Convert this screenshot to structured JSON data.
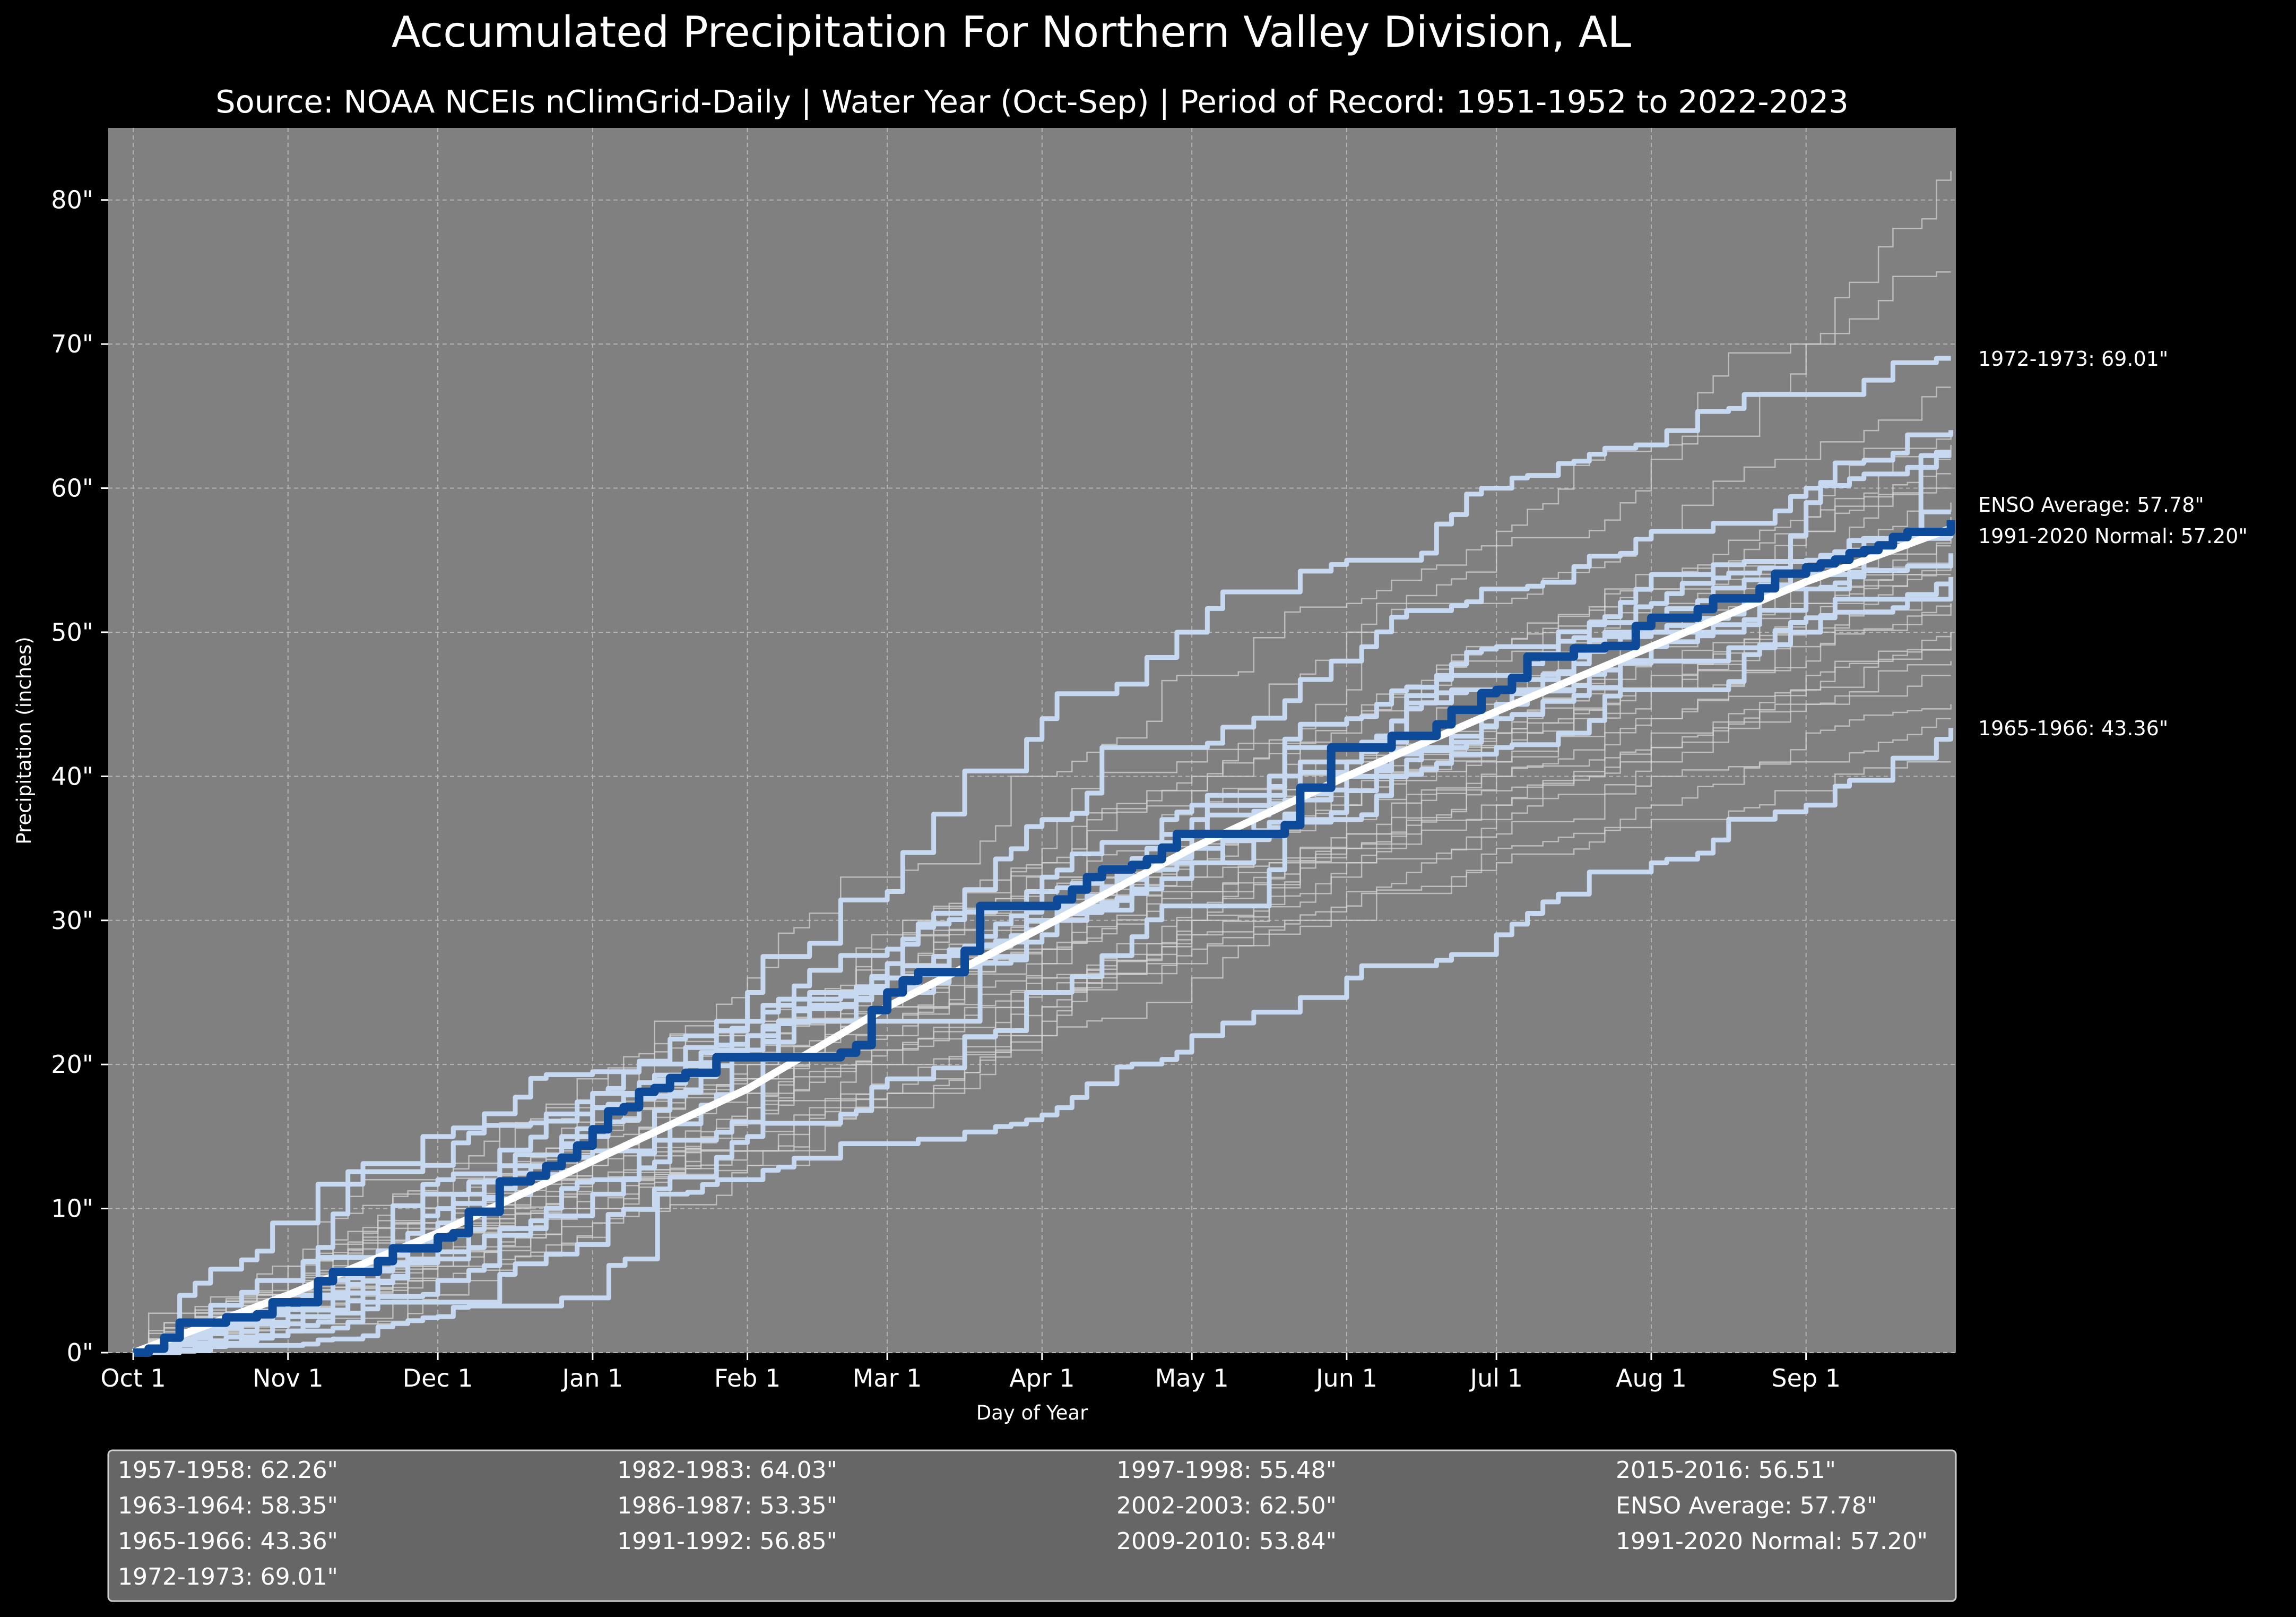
{
  "chart_data": {
    "type": "line",
    "title": "Accumulated Precipitation For Northern Valley Division, AL",
    "subtitle": "Source: NOAA NCEIs nClimGrid-Daily | Water Year (Oct-Sep) | Period of Record: 1951-1952 to 2022-2023",
    "xlabel": "Day of Year",
    "ylabel": "Precipitation (inches)",
    "ylim": [
      0,
      85
    ],
    "xlim": [
      -5,
      365
    ],
    "y_ticks": [
      {
        "value": 0,
        "label": "0\""
      },
      {
        "value": 10,
        "label": "10\""
      },
      {
        "value": 20,
        "label": "20\""
      },
      {
        "value": 30,
        "label": "30\""
      },
      {
        "value": 40,
        "label": "40\""
      },
      {
        "value": 50,
        "label": "50\""
      },
      {
        "value": 60,
        "label": "60\""
      },
      {
        "value": 70,
        "label": "70\""
      },
      {
        "value": 80,
        "label": "80\""
      }
    ],
    "x_ticks": [
      {
        "day": 0,
        "label": "Oct 1"
      },
      {
        "day": 31,
        "label": "Nov 1"
      },
      {
        "day": 61,
        "label": "Dec 1"
      },
      {
        "day": 92,
        "label": "Jan 1"
      },
      {
        "day": 123,
        "label": "Feb 1"
      },
      {
        "day": 151,
        "label": "Mar 1"
      },
      {
        "day": 182,
        "label": "Apr 1"
      },
      {
        "day": 212,
        "label": "May 1"
      },
      {
        "day": 243,
        "label": "Jun 1"
      },
      {
        "day": 273,
        "label": "Jul 1"
      },
      {
        "day": 304,
        "label": "Aug 1"
      },
      {
        "day": 335,
        "label": "Sep 1"
      }
    ],
    "grid": true,
    "colors": {
      "figure_bg": "#000000",
      "plot_bg": "#808080",
      "background_years": "#d2d2d2",
      "highlight_years": "#c6d9f0",
      "enso_average": "#0d4a99",
      "normal": "#ffffff",
      "legend_bg": "#666666"
    },
    "highlight_series": [
      {
        "name": "1957-1958",
        "final": 62.26,
        "points": [
          [
            0,
            0
          ],
          [
            31,
            3
          ],
          [
            61,
            6.5
          ],
          [
            92,
            12
          ],
          [
            123,
            21
          ],
          [
            151,
            25
          ],
          [
            182,
            31
          ],
          [
            212,
            37
          ],
          [
            243,
            42
          ],
          [
            273,
            47
          ],
          [
            304,
            52
          ],
          [
            335,
            55
          ],
          [
            355,
            56.5
          ],
          [
            358,
            62.26
          ],
          [
            364,
            62.26
          ]
        ]
      },
      {
        "name": "1963-1964",
        "final": 58.35,
        "points": [
          [
            0,
            0
          ],
          [
            31,
            1.5
          ],
          [
            61,
            5
          ],
          [
            92,
            11
          ],
          [
            123,
            16
          ],
          [
            151,
            23
          ],
          [
            182,
            30
          ],
          [
            212,
            36
          ],
          [
            243,
            40
          ],
          [
            273,
            45
          ],
          [
            304,
            50
          ],
          [
            335,
            54
          ],
          [
            364,
            58.35
          ]
        ]
      },
      {
        "name": "1965-1966",
        "final": 43.36,
        "points": [
          [
            0,
            0
          ],
          [
            31,
            0.5
          ],
          [
            61,
            2.5
          ],
          [
            92,
            3.8
          ],
          [
            105,
            11
          ],
          [
            123,
            12
          ],
          [
            151,
            14.5
          ],
          [
            182,
            16.5
          ],
          [
            212,
            22
          ],
          [
            243,
            26
          ],
          [
            273,
            29
          ],
          [
            304,
            34
          ],
          [
            335,
            38
          ],
          [
            364,
            43.36
          ]
        ]
      },
      {
        "name": "1972-1973",
        "final": 69.01,
        "points": [
          [
            0,
            0
          ],
          [
            31,
            9
          ],
          [
            61,
            15
          ],
          [
            92,
            19.5
          ],
          [
            123,
            25
          ],
          [
            151,
            32
          ],
          [
            182,
            44
          ],
          [
            212,
            50
          ],
          [
            243,
            55
          ],
          [
            273,
            60
          ],
          [
            304,
            63
          ],
          [
            335,
            66.5
          ],
          [
            364,
            69.01
          ]
        ]
      },
      {
        "name": "1982-1983",
        "final": 64.03,
        "points": [
          [
            0,
            0
          ],
          [
            31,
            4
          ],
          [
            61,
            10
          ],
          [
            92,
            17
          ],
          [
            123,
            23
          ],
          [
            151,
            28
          ],
          [
            182,
            37
          ],
          [
            212,
            42
          ],
          [
            243,
            48
          ],
          [
            273,
            53
          ],
          [
            304,
            57
          ],
          [
            335,
            60
          ],
          [
            364,
            64.03
          ]
        ]
      },
      {
        "name": "1986-1987",
        "final": 53.35,
        "points": [
          [
            0,
            0
          ],
          [
            31,
            1.5
          ],
          [
            61,
            3.5
          ],
          [
            92,
            7.5
          ],
          [
            123,
            15
          ],
          [
            151,
            19
          ],
          [
            182,
            25
          ],
          [
            212,
            31
          ],
          [
            243,
            37
          ],
          [
            273,
            42
          ],
          [
            304,
            46
          ],
          [
            335,
            50
          ],
          [
            364,
            53.35
          ]
        ]
      },
      {
        "name": "1991-1992",
        "final": 56.85,
        "points": [
          [
            0,
            0
          ],
          [
            31,
            2
          ],
          [
            61,
            7
          ],
          [
            92,
            14
          ],
          [
            123,
            21
          ],
          [
            151,
            26
          ],
          [
            182,
            30
          ],
          [
            212,
            34
          ],
          [
            243,
            39
          ],
          [
            273,
            45
          ],
          [
            304,
            49
          ],
          [
            335,
            53
          ],
          [
            364,
            56.85
          ]
        ]
      },
      {
        "name": "1997-1998",
        "final": 55.48,
        "points": [
          [
            0,
            0
          ],
          [
            31,
            5
          ],
          [
            61,
            13
          ],
          [
            92,
            18
          ],
          [
            123,
            23
          ],
          [
            151,
            27
          ],
          [
            182,
            32
          ],
          [
            212,
            36
          ],
          [
            243,
            41
          ],
          [
            273,
            46
          ],
          [
            304,
            50
          ],
          [
            335,
            53
          ],
          [
            364,
            55.48
          ]
        ]
      },
      {
        "name": "2002-2003",
        "final": 62.5,
        "points": [
          [
            0,
            0
          ],
          [
            31,
            3
          ],
          [
            61,
            9
          ],
          [
            92,
            15
          ],
          [
            123,
            22
          ],
          [
            151,
            26
          ],
          [
            182,
            33
          ],
          [
            212,
            38
          ],
          [
            243,
            44
          ],
          [
            273,
            49
          ],
          [
            304,
            54
          ],
          [
            335,
            59
          ],
          [
            364,
            62.5
          ]
        ]
      },
      {
        "name": "2009-2010",
        "final": 53.84,
        "points": [
          [
            0,
            0
          ],
          [
            31,
            4
          ],
          [
            61,
            12
          ],
          [
            92,
            18
          ],
          [
            123,
            22
          ],
          [
            151,
            26
          ],
          [
            182,
            30
          ],
          [
            212,
            35
          ],
          [
            243,
            40
          ],
          [
            273,
            44
          ],
          [
            304,
            48
          ],
          [
            335,
            51
          ],
          [
            364,
            53.84
          ]
        ]
      },
      {
        "name": "2015-2016",
        "final": 56.51,
        "points": [
          [
            0,
            0
          ],
          [
            31,
            2.5
          ],
          [
            61,
            11
          ],
          [
            92,
            17
          ],
          [
            123,
            21
          ],
          [
            151,
            25
          ],
          [
            182,
            29
          ],
          [
            212,
            34
          ],
          [
            243,
            41
          ],
          [
            273,
            46
          ],
          [
            304,
            51
          ],
          [
            335,
            54
          ],
          [
            364,
            56.51
          ]
        ]
      }
    ],
    "enso_average": {
      "name": "ENSO Average",
      "final": 57.78,
      "points": [
        [
          0,
          0
        ],
        [
          31,
          3.5
        ],
        [
          61,
          8
        ],
        [
          92,
          15.5
        ],
        [
          123,
          20.5
        ],
        [
          151,
          25
        ],
        [
          182,
          31
        ],
        [
          212,
          36
        ],
        [
          243,
          42
        ],
        [
          273,
          46
        ],
        [
          304,
          51
        ],
        [
          335,
          54.5
        ],
        [
          364,
          57.78
        ]
      ]
    },
    "normal": {
      "name": "1991-2020 Normal",
      "final": 57.2,
      "points": [
        [
          0,
          0
        ],
        [
          31,
          4
        ],
        [
          61,
          8.3
        ],
        [
          92,
          13.3
        ],
        [
          123,
          18.3
        ],
        [
          151,
          24
        ],
        [
          182,
          29.5
        ],
        [
          212,
          35
        ],
        [
          243,
          40
        ],
        [
          273,
          44.5
        ],
        [
          304,
          49
        ],
        [
          335,
          53.5
        ],
        [
          364,
          57.2
        ]
      ]
    },
    "background_series": [
      [
        0,
        4,
        9,
        14,
        18,
        23,
        28,
        33,
        38,
        43,
        48,
        53,
        58
      ],
      [
        0,
        3,
        7,
        12,
        16,
        21,
        26,
        30,
        35,
        39,
        43,
        46,
        50
      ],
      [
        0,
        2,
        6,
        10,
        15,
        20,
        25,
        30,
        35,
        41,
        46,
        52,
        57
      ],
      [
        0,
        5,
        10,
        16,
        22,
        28,
        34,
        40,
        46,
        52,
        57,
        62,
        67
      ],
      [
        0,
        3,
        8,
        13,
        18,
        22,
        27,
        32,
        37,
        42,
        46,
        50,
        54
      ],
      [
        0,
        4,
        9,
        13,
        19,
        25,
        30,
        36,
        41,
        45,
        50,
        55,
        60
      ],
      [
        0,
        2,
        5,
        9,
        13,
        17,
        22,
        27,
        31,
        35,
        38,
        41,
        44
      ],
      [
        0,
        5,
        11,
        17,
        23,
        29,
        35,
        41,
        50,
        56,
        62,
        70,
        75
      ],
      [
        0,
        3,
        7,
        11,
        15,
        20,
        24,
        29,
        33,
        37,
        41,
        45,
        48
      ],
      [
        0,
        6,
        12,
        19,
        26,
        33,
        40,
        47,
        52,
        57,
        63,
        70,
        82
      ],
      [
        0,
        4,
        8,
        12,
        16,
        21,
        25,
        30,
        34,
        38,
        42,
        46,
        50
      ],
      [
        0,
        2,
        6,
        11,
        17,
        23,
        28,
        34,
        40,
        44,
        49,
        54,
        59
      ],
      [
        0,
        3,
        8,
        14,
        20,
        25,
        31,
        36,
        41,
        46,
        52,
        57,
        63
      ],
      [
        0,
        4,
        9,
        15,
        20,
        25,
        30,
        35,
        39,
        43,
        47,
        51,
        55
      ],
      [
        0,
        5,
        10,
        15,
        20,
        24,
        29,
        34,
        38,
        42,
        46,
        49,
        52
      ],
      [
        0,
        3,
        6,
        10,
        14,
        18,
        22,
        26,
        30,
        34,
        37,
        39,
        41
      ],
      [
        0,
        2,
        5,
        9,
        14,
        19,
        25,
        31,
        36,
        41,
        46,
        51,
        56
      ],
      [
        0,
        4,
        10,
        15,
        21,
        27,
        33,
        39,
        44,
        49,
        53,
        58,
        61
      ],
      [
        0,
        3,
        7,
        12,
        17,
        21,
        26,
        30,
        34,
        38,
        42,
        45,
        47
      ],
      [
        0,
        5,
        11,
        16,
        22,
        28,
        33,
        38,
        43,
        48,
        53,
        57,
        62
      ],
      [
        0,
        2,
        4,
        8,
        13,
        18,
        24,
        29,
        35,
        40,
        44,
        48,
        52
      ],
      [
        0,
        4,
        8,
        12,
        17,
        22,
        27,
        32,
        36,
        40,
        44,
        47,
        49
      ],
      [
        0,
        3,
        9,
        14,
        19,
        24,
        30,
        34,
        39,
        43,
        48,
        52,
        55
      ],
      [
        0,
        6,
        12,
        18,
        23,
        28,
        34,
        39,
        44,
        49,
        54,
        58,
        64
      ],
      [
        0,
        2,
        6,
        10,
        14,
        18,
        23,
        28,
        32,
        36,
        40,
        43,
        45
      ],
      [
        0,
        4,
        9,
        14,
        19,
        24,
        28,
        33,
        38,
        42,
        46,
        50,
        53
      ]
    ]
  },
  "annotations": [
    {
      "text": "1972-1973:  69.01\"",
      "value": 69.01
    },
    {
      "text": "ENSO Average:  57.78\"",
      "value": 57.78,
      "offset": 1.1
    },
    {
      "text": "1991-2020 Normal:  57.20\"",
      "value": 57.2,
      "offset": -0.5
    },
    {
      "text": "1965-1966:  43.36\"",
      "value": 43.36
    }
  ],
  "legend": {
    "columns": [
      [
        "1957-1958:  62.26\"",
        "1963-1964:  58.35\"",
        "1965-1966:  43.36\"",
        "1972-1973:  69.01\""
      ],
      [
        "1982-1983:  64.03\"",
        "1986-1987:  53.35\"",
        "1991-1992:  56.85\""
      ],
      [
        "1997-1998:  55.48\"",
        "2002-2003:  62.50\"",
        "2009-2010:  53.84\""
      ],
      [
        "2015-2016:  56.51\"",
        "ENSO Average:  57.78\"",
        "1991-2020 Normal:  57.20\""
      ]
    ]
  }
}
